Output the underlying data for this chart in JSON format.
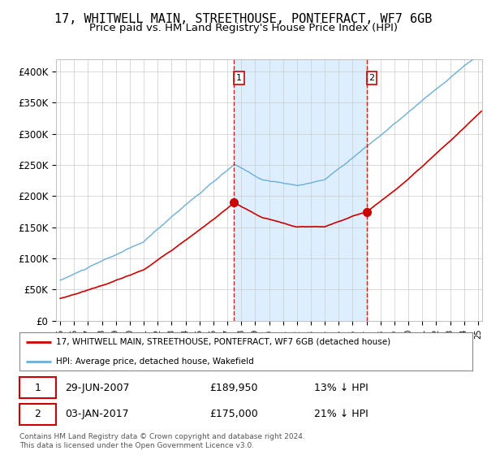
{
  "title": "17, WHITWELL MAIN, STREETHOUSE, PONTEFRACT, WF7 6GB",
  "subtitle": "Price paid vs. HM Land Registry's House Price Index (HPI)",
  "ylim": [
    0,
    420000
  ],
  "yticks": [
    0,
    50000,
    100000,
    150000,
    200000,
    250000,
    300000,
    350000,
    400000
  ],
  "ytick_labels": [
    "£0",
    "£50K",
    "£100K",
    "£150K",
    "£200K",
    "£250K",
    "£300K",
    "£350K",
    "£400K"
  ],
  "hpi_color": "#6baed6",
  "price_color": "#cc0000",
  "shade_color": "#ddeeff",
  "sale1_date": 2007.49,
  "sale1_price": 189950,
  "sale2_date": 2017.01,
  "sale2_price": 175000,
  "legend_line1": "17, WHITWELL MAIN, STREETHOUSE, PONTEFRACT, WF7 6GB (detached house)",
  "legend_line2": "HPI: Average price, detached house, Wakefield",
  "footnote": "Contains HM Land Registry data © Crown copyright and database right 2024.\nThis data is licensed under the Open Government Licence v3.0.",
  "background_color": "#ffffff",
  "grid_color": "#cccccc",
  "title_fontsize": 11,
  "subtitle_fontsize": 9.5,
  "xlim_left": 1995.0,
  "xlim_right": 2025.3
}
